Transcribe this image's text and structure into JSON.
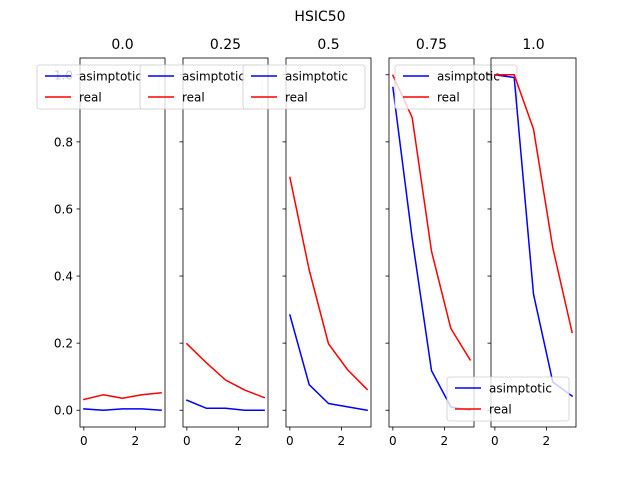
{
  "chart_data": {
    "type": "line",
    "title": "HSIC50",
    "ylim": [
      -0.05,
      1.05
    ],
    "xlim": [
      -0.15,
      3.15
    ],
    "yticks": [
      0.0,
      0.2,
      0.4,
      0.6,
      0.8,
      1.0
    ],
    "ytick_labels": [
      "0.0",
      "0.2",
      "0.4",
      "0.6",
      "0.8",
      "1.0"
    ],
    "xticks": [
      0,
      2
    ],
    "xtick_labels": [
      "0",
      "2"
    ],
    "x": [
      0,
      0.75,
      1.5,
      2.25,
      3.0
    ],
    "panels": [
      {
        "title": "0.0",
        "legend_position": "top-left",
        "series": [
          {
            "name": "asimptotic",
            "color": "#0000ff",
            "values": [
              0.004,
              0.0,
              0.004,
              0.004,
              0.0
            ]
          },
          {
            "name": "real",
            "color": "#ff0000",
            "values": [
              0.032,
              0.046,
              0.036,
              0.046,
              0.052
            ]
          }
        ]
      },
      {
        "title": "0.25",
        "legend_position": "top-left",
        "series": [
          {
            "name": "asimptotic",
            "color": "#0000ff",
            "values": [
              0.03,
              0.006,
              0.006,
              0.0,
              0.0
            ]
          },
          {
            "name": "real",
            "color": "#ff0000",
            "values": [
              0.198,
              0.142,
              0.09,
              0.06,
              0.038
            ]
          }
        ]
      },
      {
        "title": "0.5",
        "legend_position": "top-left",
        "series": [
          {
            "name": "asimptotic",
            "color": "#0000ff",
            "values": [
              0.284,
              0.076,
              0.02,
              0.01,
              0.0
            ]
          },
          {
            "name": "real",
            "color": "#ff0000",
            "values": [
              0.694,
              0.418,
              0.198,
              0.12,
              0.062
            ]
          }
        ]
      },
      {
        "title": "0.75",
        "legend_position": "top-right",
        "series": [
          {
            "name": "asimptotic",
            "color": "#0000ff",
            "values": [
              0.962,
              0.512,
              0.118,
              0.01,
              0.0
            ]
          },
          {
            "name": "real",
            "color": "#ff0000",
            "values": [
              0.998,
              0.872,
              0.474,
              0.244,
              0.15
            ]
          }
        ]
      },
      {
        "title": "1.0",
        "legend_position": "bottom-right",
        "series": [
          {
            "name": "asimptotic",
            "color": "#0000ff",
            "values": [
              1.0,
              0.992,
              0.346,
              0.084,
              0.042
            ]
          },
          {
            "name": "real",
            "color": "#ff0000",
            "values": [
              1.0,
              1.0,
              0.838,
              0.484,
              0.232
            ]
          }
        ]
      }
    ]
  }
}
